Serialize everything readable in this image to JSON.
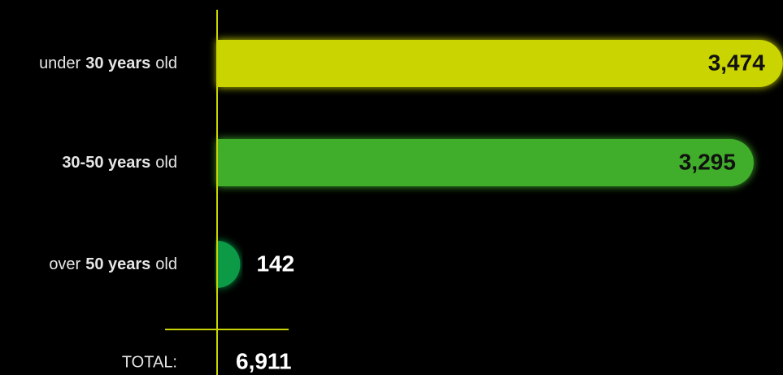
{
  "chart_data": {
    "type": "bar",
    "categories": [
      [
        {
          "text": "under"
        },
        {
          "text": "30 years",
          "bold": true
        },
        {
          "text": "old"
        }
      ],
      [
        {
          "text": "30-50 years",
          "bold": true
        },
        {
          "text": "old"
        }
      ],
      [
        {
          "text": "over"
        },
        {
          "text": "50 years",
          "bold": true
        },
        {
          "text": "old"
        }
      ]
    ],
    "values": [
      3474,
      3295,
      142
    ],
    "value_labels": [
      "3,474",
      "3,295",
      "142"
    ],
    "colors": [
      "#c9d400",
      "#3fae2a",
      "#0b9a47"
    ],
    "xlim": [
      0,
      3500
    ],
    "total": {
      "label": "TOTAL:",
      "value": 6911,
      "value_label": "6,911"
    }
  }
}
